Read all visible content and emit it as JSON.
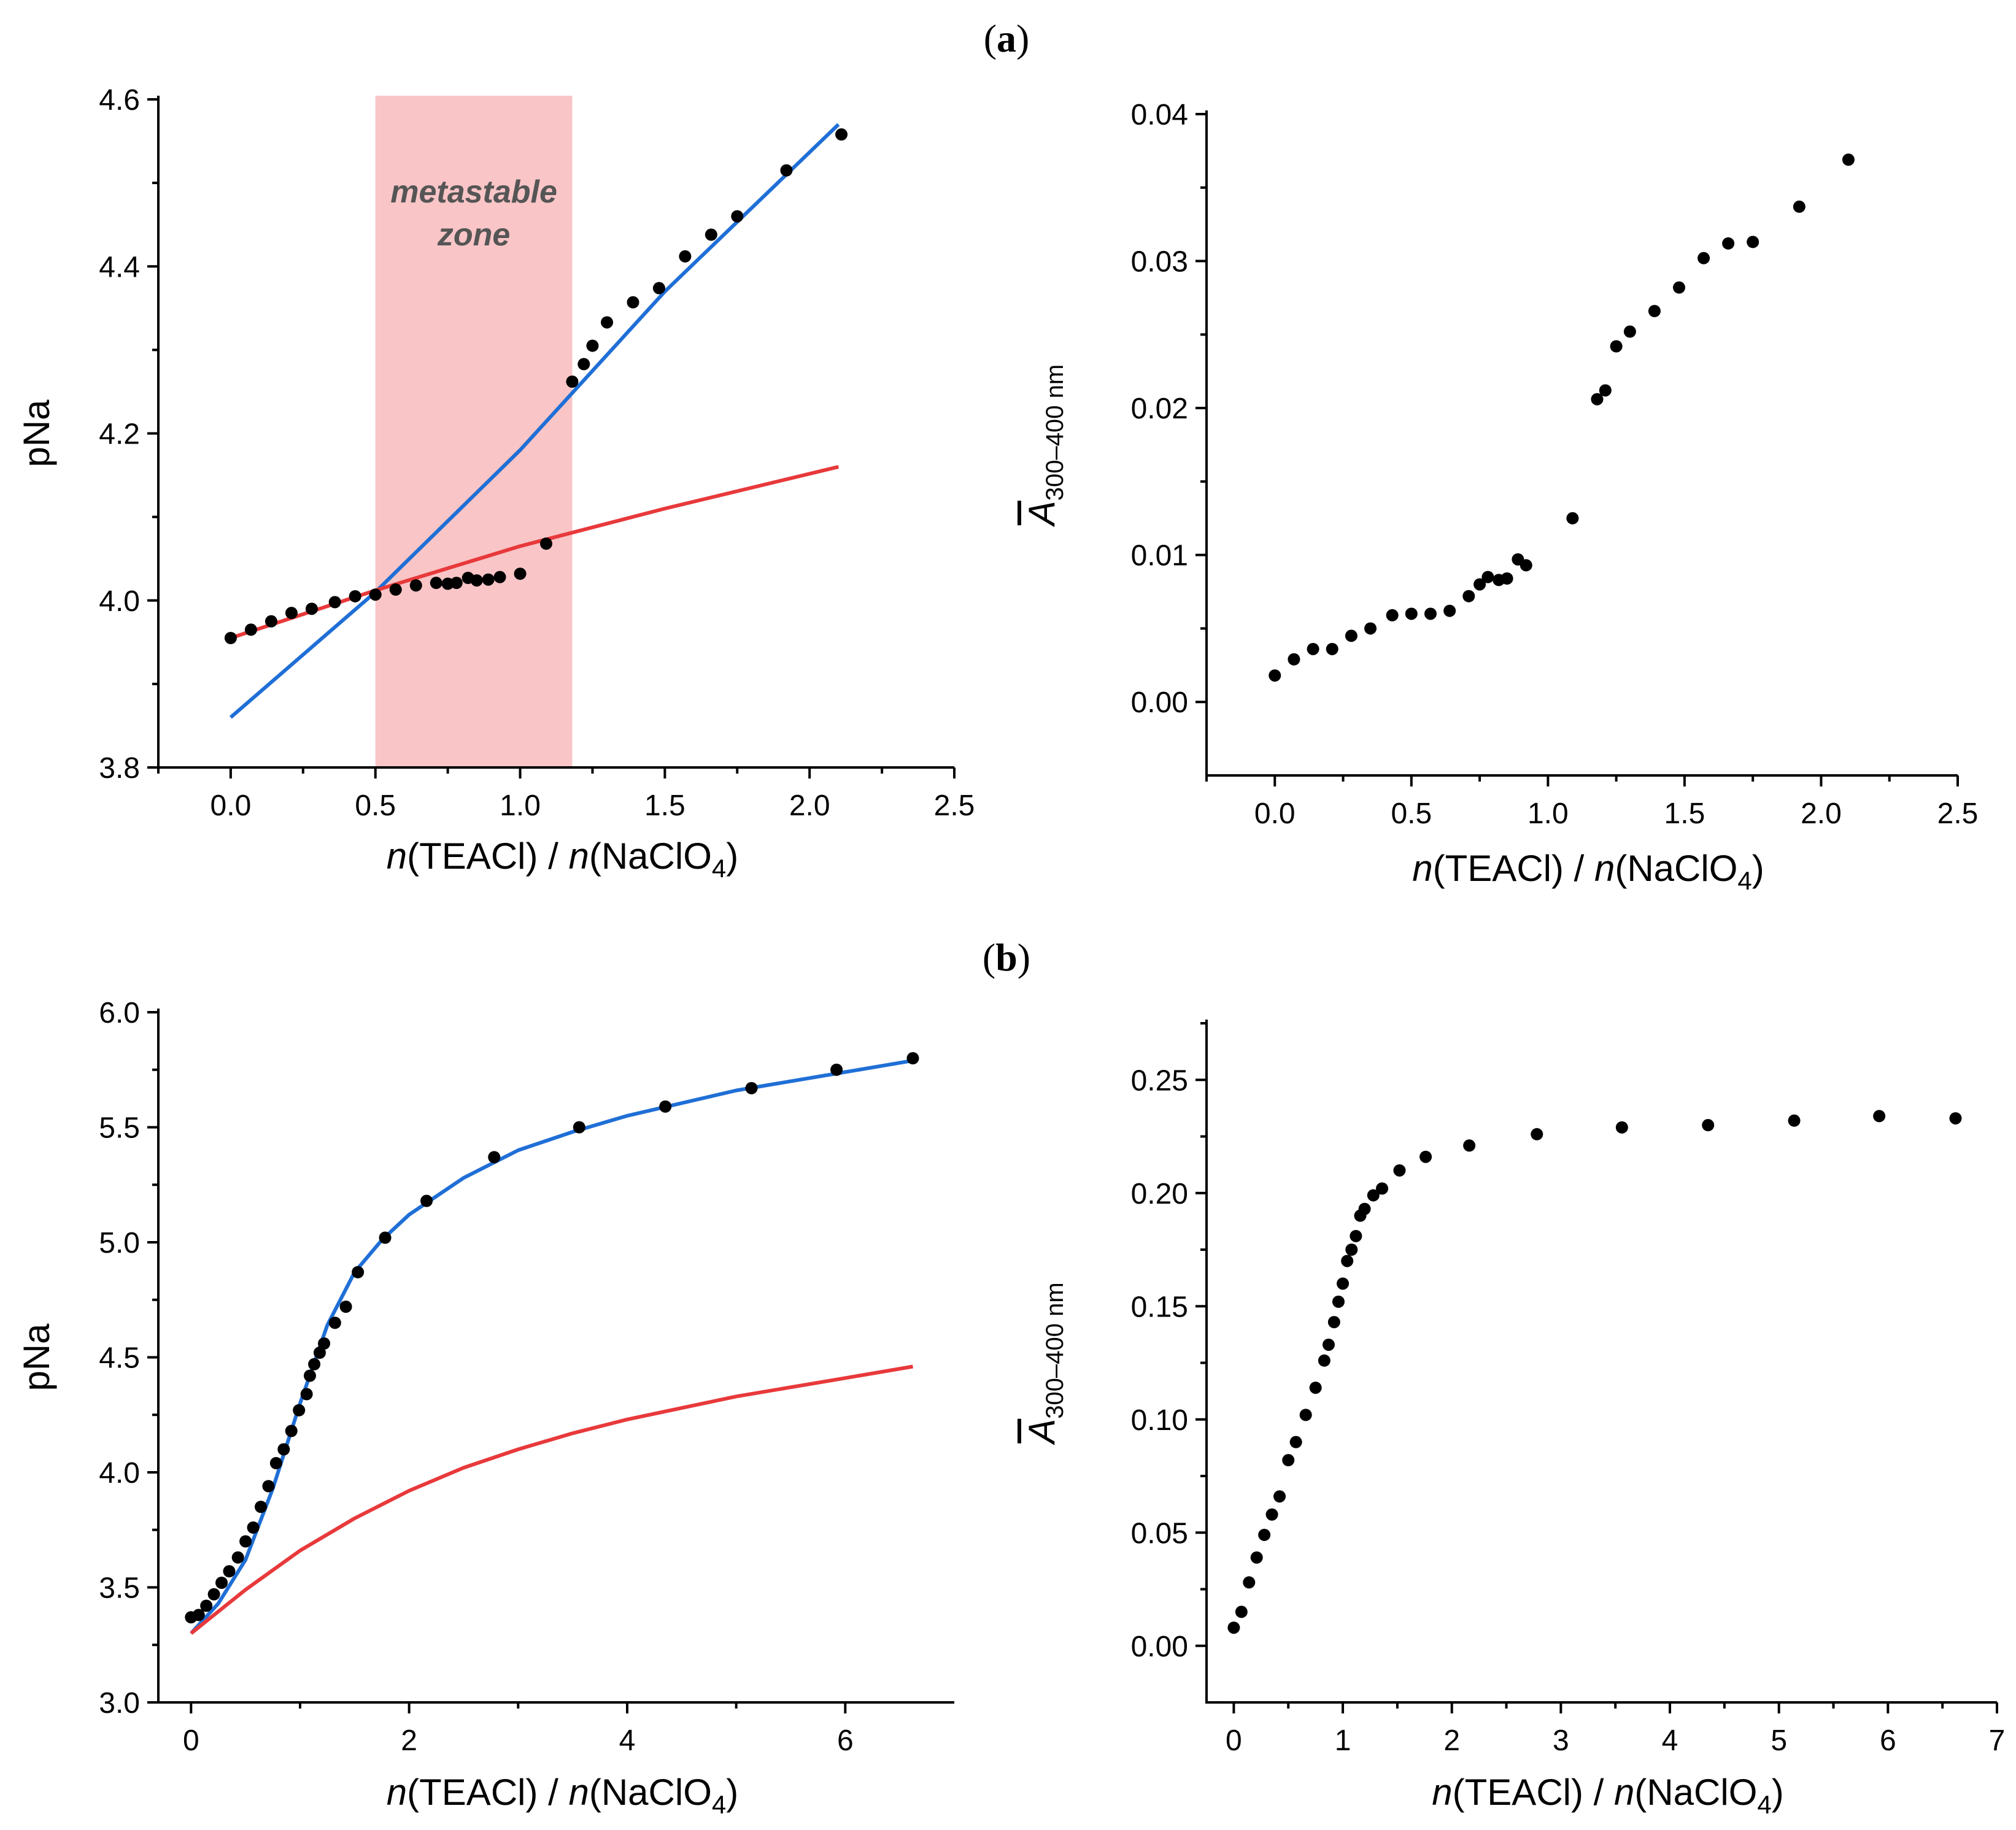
{
  "figure": {
    "panel_a_label": "(a)",
    "panel_b_label": "(b)",
    "panel_a_letter": "a",
    "panel_b_letter": "b"
  },
  "colors": {
    "data": "#000000",
    "fit_blue": "#1f6fd6",
    "fit_red": "#e8393b",
    "zone": "#f9c5c7",
    "zone_text": "#555555"
  },
  "chart_data": [
    {
      "id": "a-left",
      "type": "scatter",
      "title": "",
      "xlabel": "n(TEACl) / n(NaClO4)",
      "xlabel_parts": {
        "n1": "n",
        "mid1": "(TEACl) / ",
        "n2": "n",
        "mid2": "(NaClO",
        "sub": "4",
        "end": ")"
      },
      "ylabel": "pNa",
      "xlim": [
        -0.25,
        2.5
      ],
      "ylim": [
        3.8,
        4.6
      ],
      "xticks": [
        0.0,
        0.5,
        1.0,
        1.5,
        2.0,
        2.5
      ],
      "xtick_labels": [
        "0.0",
        "0.5",
        "1.0",
        "1.5",
        "2.0",
        "2.5"
      ],
      "yticks": [
        3.8,
        4.0,
        4.2,
        4.4,
        4.6
      ],
      "ytick_labels": [
        "3.8",
        "4.0",
        "4.2",
        "4.4",
        "4.6"
      ],
      "region": {
        "x0": 0.5,
        "x1": 1.18,
        "label_line1": "metastable",
        "label_line2": "zone"
      },
      "points": [
        [
          0.0,
          3.955
        ],
        [
          0.07,
          3.965
        ],
        [
          0.14,
          3.975
        ],
        [
          0.21,
          3.985
        ],
        [
          0.28,
          3.99
        ],
        [
          0.36,
          3.998
        ],
        [
          0.43,
          4.005
        ],
        [
          0.5,
          4.007
        ],
        [
          0.57,
          4.013
        ],
        [
          0.64,
          4.018
        ],
        [
          0.71,
          4.021
        ],
        [
          0.75,
          4.02
        ],
        [
          0.78,
          4.021
        ],
        [
          0.82,
          4.027
        ],
        [
          0.85,
          4.024
        ],
        [
          0.89,
          4.025
        ],
        [
          0.93,
          4.028
        ],
        [
          1.0,
          4.032
        ],
        [
          1.09,
          4.068
        ],
        [
          1.18,
          4.262
        ],
        [
          1.22,
          4.283
        ],
        [
          1.25,
          4.305
        ],
        [
          1.3,
          4.333
        ],
        [
          1.39,
          4.357
        ],
        [
          1.48,
          4.374
        ],
        [
          1.57,
          4.412
        ],
        [
          1.66,
          4.438
        ],
        [
          1.75,
          4.46
        ],
        [
          1.92,
          4.515
        ],
        [
          2.11,
          4.558
        ]
      ],
      "lines": [
        {
          "name": "blue fit",
          "color": "#1f6fd6",
          "x": [
            0.0,
            0.5,
            1.0,
            1.5,
            2.1
          ],
          "y": [
            3.86,
            4.01,
            4.18,
            4.37,
            4.57
          ]
        },
        {
          "name": "red fit",
          "color": "#e8393b",
          "x": [
            0.0,
            0.5,
            1.0,
            1.5,
            2.1
          ],
          "y": [
            3.955,
            4.012,
            4.065,
            4.11,
            4.16
          ]
        }
      ]
    },
    {
      "id": "a-right",
      "type": "scatter",
      "title": "",
      "xlabel": "n(TEACl) / n(NaClO4)",
      "xlabel_parts": {
        "n1": "n",
        "mid1": "(TEACl) / ",
        "n2": "n",
        "mid2": "(NaClO",
        "sub": "4",
        "end": ")"
      },
      "ylabel": "A300–400 nm",
      "ylabel_parts": {
        "main": "A",
        "sub": "300–400 nm"
      },
      "xlim": [
        -0.25,
        2.5
      ],
      "ylim": [
        -0.005,
        0.04
      ],
      "xticks": [
        0.0,
        0.5,
        1.0,
        1.5,
        2.0,
        2.5
      ],
      "xtick_labels": [
        "0.0",
        "0.5",
        "1.0",
        "1.5",
        "2.0",
        "2.5"
      ],
      "yticks": [
        0.0,
        0.01,
        0.02,
        0.03,
        0.04
      ],
      "ytick_labels": [
        "0.00",
        "0.01",
        "0.02",
        "0.03",
        "0.04"
      ],
      "points": [
        [
          0.0,
          0.0018
        ],
        [
          0.07,
          0.0029
        ],
        [
          0.14,
          0.0036
        ],
        [
          0.21,
          0.0036
        ],
        [
          0.28,
          0.0045
        ],
        [
          0.35,
          0.005
        ],
        [
          0.43,
          0.0059
        ],
        [
          0.5,
          0.006
        ],
        [
          0.57,
          0.006
        ],
        [
          0.64,
          0.0062
        ],
        [
          0.71,
          0.0072
        ],
        [
          0.75,
          0.008
        ],
        [
          0.78,
          0.0085
        ],
        [
          0.82,
          0.0083
        ],
        [
          0.85,
          0.0084
        ],
        [
          0.89,
          0.0097
        ],
        [
          0.92,
          0.0093
        ],
        [
          1.09,
          0.0125
        ],
        [
          1.18,
          0.0206
        ],
        [
          1.21,
          0.0212
        ],
        [
          1.25,
          0.0242
        ],
        [
          1.3,
          0.0252
        ],
        [
          1.39,
          0.0266
        ],
        [
          1.48,
          0.0282
        ],
        [
          1.57,
          0.0302
        ],
        [
          1.66,
          0.0312
        ],
        [
          1.75,
          0.0313
        ],
        [
          1.92,
          0.0337
        ],
        [
          2.1,
          0.0369
        ]
      ]
    },
    {
      "id": "b-left",
      "type": "scatter",
      "title": "",
      "xlabel": "n(TEACl) / n(NaClO4)",
      "xlabel_parts": {
        "n1": "n",
        "mid1": "(TEACl) / ",
        "n2": "n",
        "mid2": "(NaClO",
        "sub": "4",
        "end": ")"
      },
      "ylabel": "pNa",
      "xlim": [
        -0.3,
        7.0
      ],
      "ylim": [
        3.0,
        6.0
      ],
      "xticks": [
        0,
        2,
        4,
        6
      ],
      "xtick_labels": [
        "0",
        "2",
        "4",
        "6"
      ],
      "yticks": [
        3.0,
        3.5,
        4.0,
        4.5,
        5.0,
        5.5,
        6.0
      ],
      "ytick_labels": [
        "3.0",
        "3.5",
        "4.0",
        "4.5",
        "5.0",
        "5.5",
        "6.0"
      ],
      "points": [
        [
          0.0,
          3.37
        ],
        [
          0.07,
          3.38
        ],
        [
          0.14,
          3.42
        ],
        [
          0.21,
          3.47
        ],
        [
          0.28,
          3.52
        ],
        [
          0.35,
          3.57
        ],
        [
          0.43,
          3.63
        ],
        [
          0.5,
          3.7
        ],
        [
          0.57,
          3.76
        ],
        [
          0.64,
          3.85
        ],
        [
          0.71,
          3.94
        ],
        [
          0.78,
          4.04
        ],
        [
          0.85,
          4.1
        ],
        [
          0.92,
          4.18
        ],
        [
          0.99,
          4.27
        ],
        [
          1.06,
          4.34
        ],
        [
          1.09,
          4.42
        ],
        [
          1.13,
          4.47
        ],
        [
          1.18,
          4.52
        ],
        [
          1.22,
          4.56
        ],
        [
          1.32,
          4.65
        ],
        [
          1.42,
          4.72
        ],
        [
          1.53,
          4.87
        ],
        [
          1.78,
          5.02
        ],
        [
          2.16,
          5.18
        ],
        [
          2.78,
          5.37
        ],
        [
          3.56,
          5.5
        ],
        [
          4.35,
          5.59
        ],
        [
          5.14,
          5.67
        ],
        [
          5.92,
          5.75
        ],
        [
          6.62,
          5.8
        ]
      ],
      "lines": [
        {
          "name": "blue fit",
          "color": "#1f6fd6",
          "x": [
            0.0,
            0.25,
            0.5,
            0.75,
            1.0,
            1.25,
            1.5,
            1.75,
            2.0,
            2.5,
            3.0,
            3.5,
            4.0,
            5.0,
            6.0,
            6.62
          ],
          "y": [
            3.3,
            3.43,
            3.62,
            3.93,
            4.3,
            4.64,
            4.87,
            5.01,
            5.12,
            5.28,
            5.4,
            5.48,
            5.55,
            5.66,
            5.74,
            5.79
          ]
        },
        {
          "name": "red fit",
          "color": "#e8393b",
          "x": [
            0.0,
            0.5,
            1.0,
            1.5,
            2.0,
            2.5,
            3.0,
            3.5,
            4.0,
            5.0,
            6.0,
            6.62
          ],
          "y": [
            3.3,
            3.49,
            3.66,
            3.8,
            3.92,
            4.02,
            4.1,
            4.17,
            4.23,
            4.33,
            4.41,
            4.46
          ]
        }
      ]
    },
    {
      "id": "b-right",
      "type": "scatter",
      "title": "",
      "xlabel": "n(TEACl) / n(NaClO4)",
      "xlabel_parts": {
        "n1": "n",
        "mid1": "(TEACl) / ",
        "n2": "n",
        "mid2": "(NaClO",
        "sub": "4",
        "end": ")"
      },
      "ylabel": "A300–400 nm",
      "ylabel_parts": {
        "main": "A",
        "sub": "300–400 nm"
      },
      "xlim": [
        -0.25,
        7.0
      ],
      "ylim": [
        -0.025,
        0.275
      ],
      "xticks": [
        0,
        1,
        2,
        3,
        4,
        5,
        6,
        7
      ],
      "xtick_labels": [
        "0",
        "1",
        "2",
        "3",
        "4",
        "5",
        "6",
        "7"
      ],
      "yticks": [
        0.0,
        0.05,
        0.1,
        0.15,
        0.2,
        0.25
      ],
      "ytick_labels": [
        "0.00",
        "0.05",
        "0.10",
        "0.15",
        "0.20",
        "0.25"
      ],
      "points": [
        [
          0.0,
          0.008
        ],
        [
          0.07,
          0.015
        ],
        [
          0.14,
          0.028
        ],
        [
          0.21,
          0.039
        ],
        [
          0.28,
          0.049
        ],
        [
          0.35,
          0.058
        ],
        [
          0.42,
          0.066
        ],
        [
          0.5,
          0.082
        ],
        [
          0.57,
          0.09
        ],
        [
          0.66,
          0.102
        ],
        [
          0.75,
          0.114
        ],
        [
          0.83,
          0.126
        ],
        [
          0.87,
          0.133
        ],
        [
          0.92,
          0.143
        ],
        [
          0.96,
          0.152
        ],
        [
          1.0,
          0.16
        ],
        [
          1.04,
          0.17
        ],
        [
          1.08,
          0.175
        ],
        [
          1.12,
          0.181
        ],
        [
          1.16,
          0.19
        ],
        [
          1.2,
          0.193
        ],
        [
          1.28,
          0.199
        ],
        [
          1.36,
          0.202
        ],
        [
          1.52,
          0.21
        ],
        [
          1.76,
          0.216
        ],
        [
          2.16,
          0.221
        ],
        [
          2.78,
          0.226
        ],
        [
          3.56,
          0.229
        ],
        [
          4.35,
          0.23
        ],
        [
          5.14,
          0.232
        ],
        [
          5.92,
          0.234
        ],
        [
          6.62,
          0.233
        ]
      ]
    }
  ]
}
